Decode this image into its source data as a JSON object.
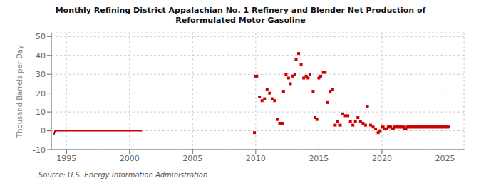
{
  "chart_data": {
    "type": "scatter",
    "title": "Monthly Refining District Appalachian No. 1 Refinery and Blender Net Production of\nReformulated Motor Gasoline",
    "ylabel": "Thousand Barrels per Day",
    "annotations": [
      "Source: U.S. Energy Information Administration"
    ],
    "xlim": [
      1993.8,
      2026.5
    ],
    "ylim": [
      -10,
      52
    ],
    "xticks": [
      1995,
      2000,
      2005,
      2010,
      2015,
      2020,
      2025
    ],
    "yticks": [
      -10,
      0,
      10,
      20,
      30,
      40,
      50
    ],
    "grid": true,
    "series": [
      {
        "type": "line",
        "color": "#cc0000",
        "x": [
          1994.0,
          1994.1,
          1994.2,
          1994.3,
          1994.4,
          1994.5,
          1994.6,
          1994.7,
          1994.8,
          1994.9,
          1995.0,
          1995.1,
          1995.2,
          1995.3,
          1995.4,
          1995.5,
          1995.6,
          1995.7,
          1995.8,
          1995.9,
          1996.0,
          1996.1,
          1996.2,
          1996.3,
          1996.4,
          1996.5,
          1996.6,
          1996.7,
          1996.8,
          1996.9,
          1997.0,
          1997.1,
          1997.2,
          1997.3,
          1997.4,
          1997.5,
          1997.6,
          1997.7,
          1997.8,
          1997.9,
          1998.0,
          1998.1,
          1998.2,
          1998.3,
          1998.4,
          1998.5,
          1998.6,
          1998.7,
          1998.8,
          1998.9,
          1999.0,
          1999.1,
          1999.2,
          1999.3,
          1999.4,
          1999.5,
          1999.6,
          1999.7,
          1999.8,
          1999.9,
          2000.0,
          2000.1,
          2000.2,
          2000.3,
          2000.4,
          2000.5,
          2000.6,
          2000.7,
          2000.8,
          2000.9,
          2001.0
        ],
        "values": [
          -2,
          0,
          0,
          0,
          0,
          0,
          0,
          0,
          0,
          0,
          0,
          0,
          0,
          0,
          0,
          0,
          0,
          0,
          0,
          0,
          0,
          0,
          0,
          0,
          0,
          0,
          0,
          0,
          0,
          0,
          0,
          0,
          0,
          0,
          0,
          0,
          0,
          0,
          0,
          0,
          0,
          0,
          0,
          0,
          0,
          0,
          0,
          0,
          0,
          0,
          0,
          0,
          0,
          0,
          0,
          0,
          0,
          0,
          0,
          0,
          0,
          0,
          0,
          0,
          0,
          0,
          0,
          0,
          0,
          0,
          0
        ]
      },
      {
        "type": "scatter",
        "color": "#cc0000",
        "marker": "square",
        "x": [
          2009.9,
          2010.0,
          2010.08,
          2010.3,
          2010.5,
          2010.7,
          2010.9,
          2011.1,
          2011.3,
          2011.5,
          2011.7,
          2011.9,
          2012.1,
          2012.2,
          2012.4,
          2012.6,
          2012.75,
          2012.9,
          2013.1,
          2013.2,
          2013.4,
          2013.6,
          2013.8,
          2014.0,
          2014.15,
          2014.3,
          2014.55,
          2014.7,
          2014.85,
          2015.0,
          2015.15,
          2015.35,
          2015.5,
          2015.7,
          2015.9,
          2016.1,
          2016.3,
          2016.5,
          2016.7,
          2016.9,
          2017.1,
          2017.3,
          2017.5,
          2017.7,
          2017.9,
          2018.1,
          2018.3,
          2018.5,
          2018.7,
          2018.85,
          2019.1,
          2019.3,
          2019.5,
          2019.7,
          2019.85,
          2020.0,
          2020.1,
          2020.2,
          2020.3,
          2020.4,
          2020.5,
          2020.6,
          2020.7,
          2020.8,
          2020.9,
          2021.0,
          2021.1,
          2021.2,
          2021.3,
          2021.4,
          2021.5,
          2021.6,
          2021.7,
          2021.8,
          2021.9,
          2022.0,
          2022.1,
          2022.2,
          2022.3,
          2022.4,
          2022.5,
          2022.6,
          2022.7,
          2022.8,
          2022.9,
          2023.0,
          2023.1,
          2023.2,
          2023.3,
          2023.4,
          2023.5,
          2023.6,
          2023.7,
          2023.8,
          2023.9,
          2024.0,
          2024.1,
          2024.2,
          2024.3,
          2024.4,
          2024.5,
          2024.6,
          2024.7,
          2024.8,
          2024.9,
          2025.0,
          2025.1,
          2025.2,
          2025.3
        ],
        "values": [
          -1,
          29,
          29,
          18,
          16,
          17,
          22,
          20,
          17,
          16,
          6,
          4,
          4,
          21,
          30,
          28,
          25,
          29,
          30,
          38,
          41,
          35,
          28,
          29,
          28,
          30,
          21,
          7,
          6,
          28,
          29,
          31,
          31,
          15,
          21,
          22,
          3,
          5,
          3,
          9,
          8,
          8,
          5,
          3,
          5,
          7,
          5,
          4,
          3,
          13,
          3,
          2,
          1,
          -1,
          0,
          2,
          2,
          1,
          1,
          1,
          2,
          2,
          2,
          1,
          1,
          2,
          2,
          2,
          2,
          2,
          2,
          2,
          2,
          1,
          1,
          2,
          2,
          2,
          2,
          2,
          2,
          2,
          2,
          2,
          2,
          2,
          2,
          2,
          2,
          2,
          2,
          2,
          2,
          2,
          2,
          2,
          2,
          2,
          2,
          2,
          2,
          2,
          2,
          2,
          2,
          2,
          2,
          2,
          2
        ]
      }
    ]
  }
}
